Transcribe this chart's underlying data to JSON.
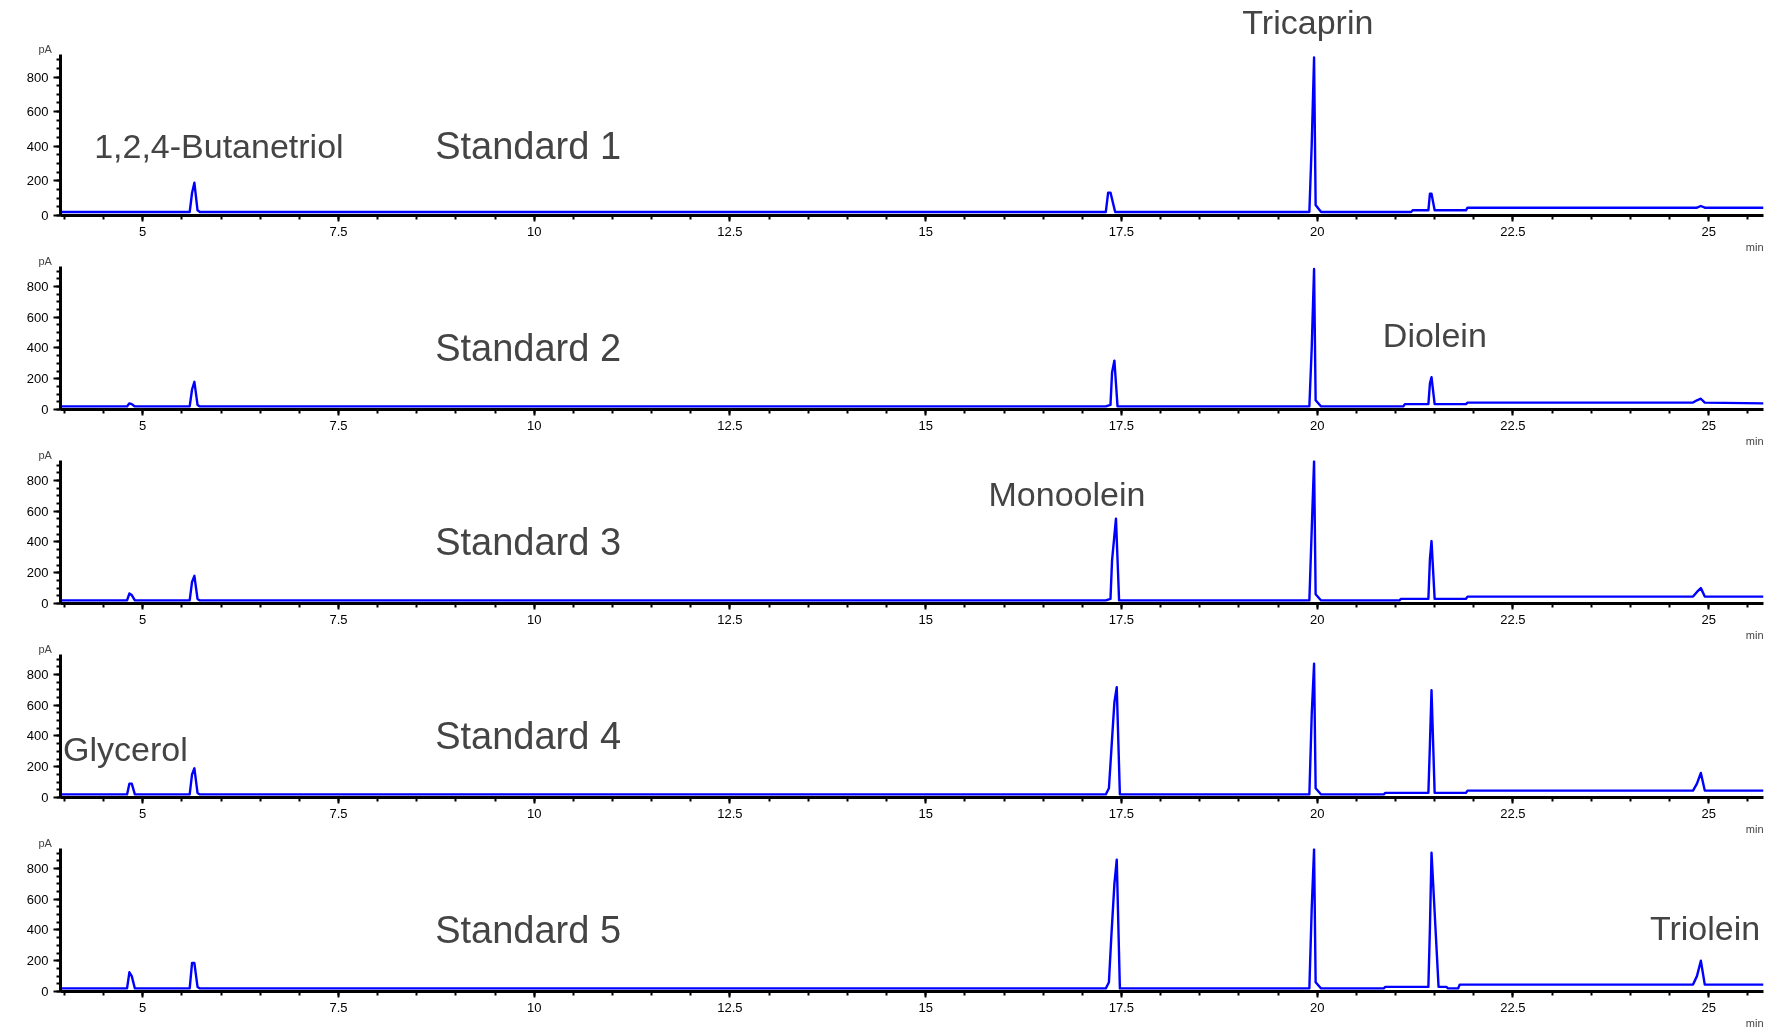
{
  "chart_data": [
    {
      "type": "line",
      "title": "Standard 1",
      "xlabel": "min",
      "ylabel": "pA",
      "xlim": [
        3.95,
        25.7
      ],
      "ylim": [
        0,
        930
      ],
      "xticks": [
        5,
        7.5,
        10,
        12.5,
        15,
        17.5,
        20,
        22.5,
        25
      ],
      "yticks": [
        0,
        200,
        400,
        600,
        800
      ],
      "grid": false,
      "marker": "none",
      "line_style": "solid",
      "annotations": [
        "1,2,4-Butanetriol",
        "Tricaprin"
      ],
      "series": [
        {
          "color": "#0000ff",
          "x": [
            3.95,
            5.6,
            5.63,
            5.66,
            5.7,
            5.73,
            17.3,
            17.33,
            17.36,
            17.42,
            17.45,
            19.9,
            19.93,
            19.96,
            19.98,
            20.05,
            21.2,
            21.22,
            21.42,
            21.44,
            21.46,
            21.5,
            21.9,
            21.92,
            24.85,
            24.9,
            24.95,
            25.7
          ],
          "values": [
            20,
            20,
            130,
            189,
            30,
            20,
            20,
            132,
            132,
            20,
            20,
            20,
            410,
            913,
            60,
            20,
            20,
            30,
            30,
            126,
            126,
            30,
            30,
            45,
            45,
            55,
            45,
            45
          ]
        }
      ]
    },
    {
      "type": "line",
      "title": "Standard 2",
      "xlabel": "min",
      "ylabel": "pA",
      "xlim": [
        3.95,
        25.7
      ],
      "ylim": [
        0,
        930
      ],
      "xticks": [
        5,
        7.5,
        10,
        12.5,
        15,
        17.5,
        20,
        22.5,
        25
      ],
      "yticks": [
        0,
        200,
        400,
        600,
        800
      ],
      "grid": false,
      "marker": "none",
      "line_style": "solid",
      "annotations": [
        "Diolein"
      ],
      "series": [
        {
          "color": "#0000ff",
          "x": [
            3.95,
            4.8,
            4.83,
            4.86,
            4.9,
            5.6,
            5.63,
            5.66,
            5.7,
            5.73,
            17.3,
            17.36,
            17.38,
            17.41,
            17.45,
            19.9,
            19.93,
            19.96,
            19.98,
            20.05,
            21.1,
            21.12,
            21.42,
            21.44,
            21.46,
            21.5,
            21.9,
            21.92,
            24.8,
            24.85,
            24.9,
            24.95,
            25.7
          ],
          "values": [
            20,
            20,
            40,
            35,
            20,
            20,
            130,
            180,
            30,
            20,
            20,
            30,
            240,
            318,
            20,
            20,
            400,
            914,
            60,
            20,
            20,
            35,
            35,
            170,
            210,
            35,
            35,
            45,
            45,
            60,
            70,
            45,
            40
          ]
        }
      ]
    },
    {
      "type": "line",
      "title": "Standard 3",
      "xlabel": "min",
      "ylabel": "pA",
      "xlim": [
        3.95,
        25.7
      ],
      "ylim": [
        0,
        930
      ],
      "xticks": [
        5,
        7.5,
        10,
        12.5,
        15,
        17.5,
        20,
        22.5,
        25
      ],
      "yticks": [
        0,
        200,
        400,
        600,
        800
      ],
      "grid": false,
      "marker": "none",
      "line_style": "solid",
      "annotations": [
        "Monoolein"
      ],
      "series": [
        {
          "color": "#0000ff",
          "x": [
            3.95,
            4.8,
            4.83,
            4.86,
            4.9,
            5.6,
            5.63,
            5.66,
            5.7,
            5.73,
            17.3,
            17.36,
            17.38,
            17.43,
            17.47,
            19.9,
            19.93,
            19.96,
            19.98,
            20.05,
            21.05,
            21.07,
            21.42,
            21.44,
            21.46,
            21.5,
            21.9,
            21.92,
            24.8,
            24.85,
            24.9,
            24.95,
            25.7
          ],
          "values": [
            20,
            20,
            65,
            55,
            20,
            20,
            140,
            180,
            30,
            20,
            20,
            30,
            280,
            552,
            20,
            20,
            480,
            925,
            60,
            20,
            20,
            30,
            30,
            290,
            406,
            30,
            30,
            45,
            45,
            75,
            100,
            45,
            45
          ]
        }
      ]
    },
    {
      "type": "line",
      "title": "Standard 4",
      "xlabel": "min",
      "ylabel": "pA",
      "xlim": [
        3.95,
        25.7
      ],
      "ylim": [
        0,
        930
      ],
      "xticks": [
        5,
        7.5,
        10,
        12.5,
        15,
        17.5,
        20,
        22.5,
        25
      ],
      "yticks": [
        0,
        200,
        400,
        600,
        800
      ],
      "grid": false,
      "marker": "none",
      "line_style": "solid",
      "annotations": [
        "Glycerol"
      ],
      "series": [
        {
          "color": "#0000ff",
          "x": [
            3.95,
            4.8,
            4.83,
            4.86,
            4.9,
            5.6,
            5.63,
            5.66,
            5.7,
            5.73,
            17.3,
            17.34,
            17.37,
            17.41,
            17.44,
            17.48,
            19.9,
            19.93,
            19.96,
            19.98,
            20.05,
            20.85,
            20.87,
            21.42,
            21.44,
            21.46,
            21.5,
            21.9,
            21.92,
            24.8,
            24.85,
            24.9,
            24.95,
            25.7
          ],
          "values": [
            20,
            20,
            90,
            90,
            20,
            20,
            150,
            190,
            30,
            20,
            20,
            60,
            300,
            620,
            717,
            20,
            20,
            540,
            870,
            60,
            20,
            20,
            30,
            30,
            350,
            698,
            30,
            30,
            45,
            45,
            90,
            160,
            45,
            45
          ]
        }
      ]
    },
    {
      "type": "line",
      "title": "Standard 5",
      "xlabel": "min",
      "ylabel": "pA",
      "xlim": [
        3.95,
        25.7
      ],
      "ylim": [
        0,
        930
      ],
      "xticks": [
        5,
        7.5,
        10,
        12.5,
        15,
        17.5,
        20,
        22.5,
        25
      ],
      "yticks": [
        0,
        200,
        400,
        600,
        800
      ],
      "grid": false,
      "marker": "none",
      "line_style": "solid",
      "annotations": [
        "Triolein"
      ],
      "series": [
        {
          "color": "#0000ff",
          "x": [
            3.95,
            4.8,
            4.83,
            4.86,
            4.9,
            5.6,
            5.63,
            5.66,
            5.7,
            5.73,
            17.3,
            17.34,
            17.37,
            17.41,
            17.44,
            17.48,
            19.9,
            19.93,
            19.96,
            19.98,
            20.05,
            20.85,
            20.87,
            21.42,
            21.44,
            21.46,
            21.55,
            21.65,
            21.67,
            21.8,
            21.82,
            24.8,
            24.85,
            24.9,
            24.95,
            25.7
          ],
          "values": [
            20,
            20,
            125,
            100,
            20,
            20,
            185,
            185,
            30,
            20,
            20,
            60,
            350,
            700,
            857,
            20,
            20,
            540,
            925,
            60,
            20,
            20,
            30,
            30,
            420,
            902,
            30,
            30,
            20,
            20,
            45,
            45,
            100,
            200,
            45,
            45
          ]
        }
      ]
    }
  ]
}
